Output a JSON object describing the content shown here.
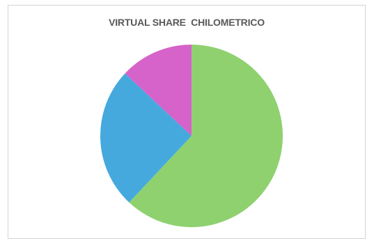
{
  "chart_data": {
    "type": "pie",
    "title": "VIRTUAL SHARE  CHILOMETRICO",
    "slices": [
      {
        "value": 62,
        "color": "#8fd16f"
      },
      {
        "value": 25,
        "color": "#45a9de"
      },
      {
        "value": 13,
        "color": "#d563c9"
      }
    ],
    "start_angle": "12 o'clock",
    "direction": "clockwise",
    "legend": "none"
  }
}
